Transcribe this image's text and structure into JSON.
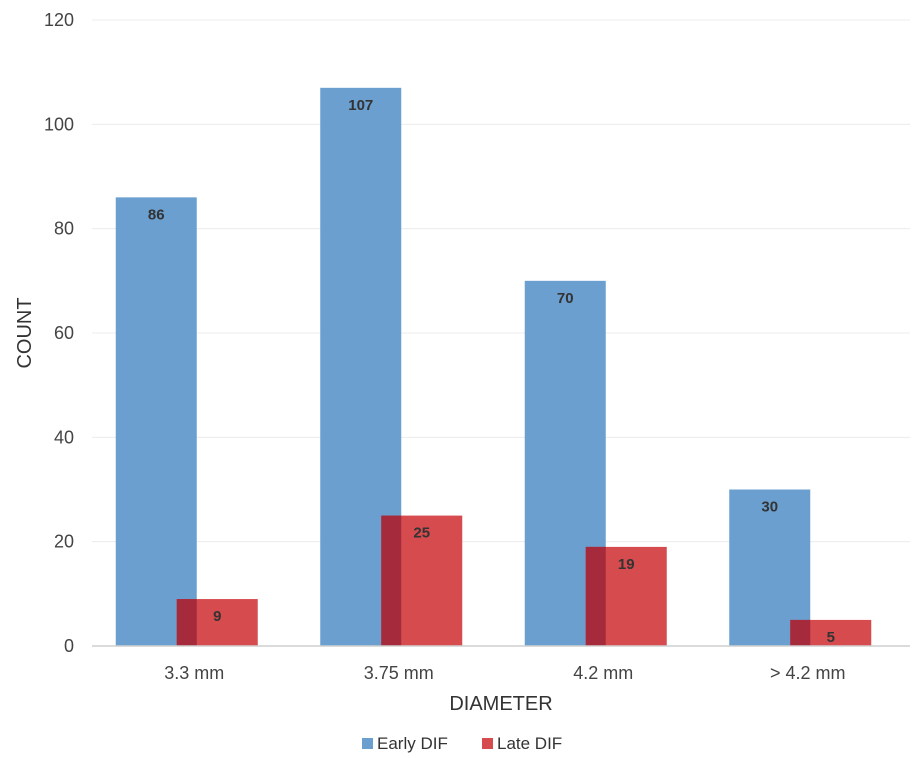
{
  "chart_data": {
    "type": "bar",
    "categories": [
      "3.3 mm",
      "3.75 mm",
      "4.2 mm",
      "> 4.2 mm"
    ],
    "series": [
      {
        "name": "Early DIF",
        "values": [
          86,
          107,
          70,
          30
        ],
        "color": "#6a9fcf"
      },
      {
        "name": "Late DIF",
        "values": [
          9,
          25,
          19,
          5
        ],
        "color": "#d64b4e"
      }
    ],
    "overlap_color": "#a52b3c",
    "xlabel": "DIAMETER",
    "ylabel": "COUNT",
    "ylim": [
      0,
      120
    ],
    "yticks": [
      0,
      20,
      40,
      60,
      80,
      100,
      120
    ],
    "grid": true,
    "legend": "bottom"
  }
}
